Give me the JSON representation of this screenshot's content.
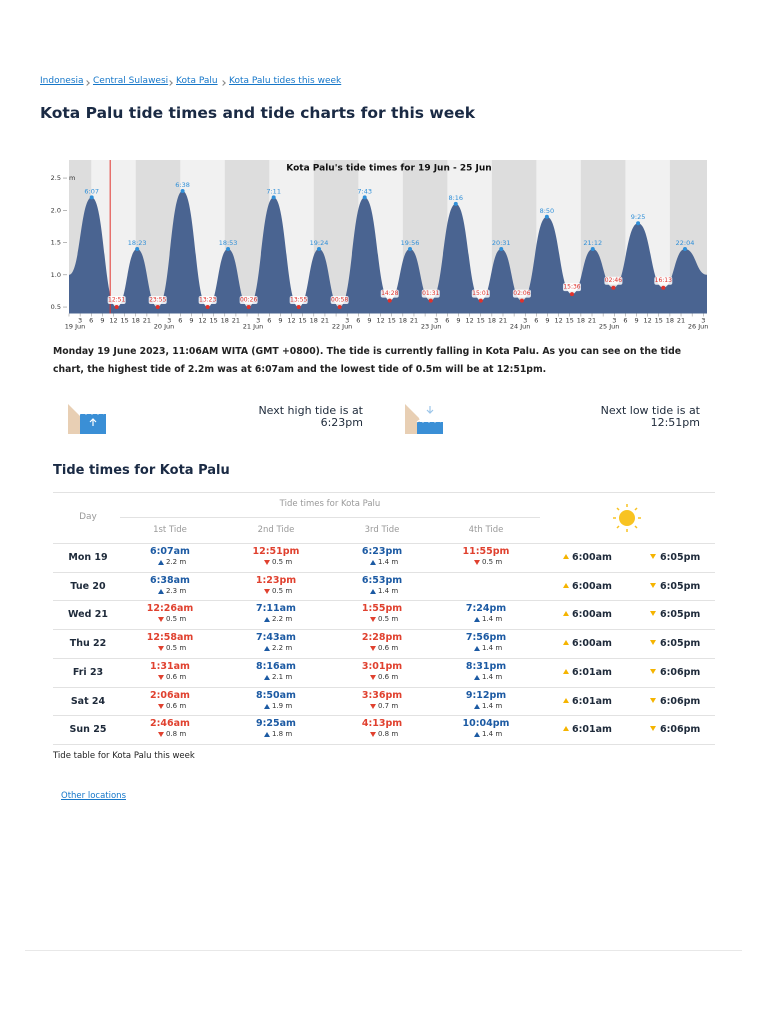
{
  "breadcrumbs": [
    "Indonesia",
    "Central Sulawesi",
    "Kota Palu",
    "Kota Palu tides this week"
  ],
  "page_title": "Kota Palu tide times and tide charts for this week",
  "chart": {
    "chart_data": {
      "type": "area",
      "title": "Kota Palu's tide times for 19 Jun - 25 Jun",
      "color": "#4a6491",
      "x": [
        0,
        6.12,
        12.85,
        18.38,
        23.92,
        30.63,
        37.38,
        42.88,
        48.43,
        55.18,
        61.92,
        67.4,
        72.97,
        79.72,
        86.47,
        91.93,
        97.52,
        104.27,
        111.02,
        116.52,
        122.1,
        128.83,
        135.6,
        141.2,
        146.77,
        153.42,
        160.22,
        166.07,
        172
      ],
      "values": [
        1.0,
        2.2,
        0.5,
        1.4,
        0.5,
        2.3,
        0.5,
        1.4,
        0.5,
        2.2,
        0.5,
        1.4,
        0.5,
        2.2,
        0.6,
        1.4,
        0.6,
        2.1,
        0.6,
        1.4,
        0.6,
        1.9,
        0.7,
        1.4,
        0.8,
        1.8,
        0.8,
        1.4,
        1.0
      ],
      "value_labels": [
        null,
        "6:07",
        "12:51",
        "18:23",
        "23:55",
        "6:38",
        "13:23",
        "18:53",
        "00:26",
        "7:11",
        "13:55",
        "19:24",
        "00:58",
        "7:43",
        "14:28",
        "19:56",
        "01:31",
        "8:16",
        "15:01",
        "20:31",
        "02:06",
        "8:50",
        "15:36",
        "21:12",
        "02:46",
        "9:25",
        "16:13",
        "22:04",
        null
      ],
      "now_x": 11.1,
      "xlim": [
        0,
        172
      ],
      "ylim": [
        0.4,
        2.78
      ],
      "y_unit": "m",
      "yticks": [
        0.5,
        {
          "value": 1.0,
          "label": "1.0"
        },
        1.5,
        {
          "value": 2.0,
          "label": "2.0"
        },
        2.5
      ],
      "xticks": [
        {
          "value": 0,
          "label": "19 Jun"
        },
        3,
        6,
        9,
        12,
        15,
        18,
        21,
        {
          "value": 24,
          "label": "20 Jun"
        },
        {
          "value": 27,
          "label": "3"
        },
        {
          "value": 30,
          "label": "6"
        },
        {
          "value": 33,
          "label": "9"
        },
        {
          "value": 36,
          "label": "12"
        },
        {
          "value": 39,
          "label": "15"
        },
        {
          "value": 42,
          "label": "18"
        },
        {
          "value": 45,
          "label": "21"
        },
        {
          "value": 48,
          "label": "21 Jun"
        },
        {
          "value": 51,
          "label": "3"
        },
        {
          "value": 54,
          "label": "6"
        },
        {
          "value": 57,
          "label": "9"
        },
        {
          "value": 60,
          "label": "12"
        },
        {
          "value": 63,
          "label": "15"
        },
        {
          "value": 66,
          "label": "18"
        },
        {
          "value": 69,
          "label": "21"
        },
        {
          "value": 72,
          "label": "22 Jun"
        },
        {
          "value": 75,
          "label": "3"
        },
        {
          "value": 78,
          "label": "6"
        },
        {
          "value": 81,
          "label": "9"
        },
        {
          "value": 84,
          "label": "12"
        },
        {
          "value": 87,
          "label": "15"
        },
        {
          "value": 90,
          "label": "18"
        },
        {
          "value": 93,
          "label": "21"
        },
        {
          "value": 96,
          "label": "23 Jun"
        },
        {
          "value": 99,
          "label": "3"
        },
        {
          "value": 102,
          "label": "6"
        },
        {
          "value": 105,
          "label": "9"
        },
        {
          "value": 108,
          "label": "12"
        },
        {
          "value": 111,
          "label": "15"
        },
        {
          "value": 114,
          "label": "18"
        },
        {
          "value": 117,
          "label": "21"
        },
        {
          "value": 120,
          "label": "24 Jun"
        },
        {
          "value": 123,
          "label": "3"
        },
        {
          "value": 126,
          "label": "6"
        },
        {
          "value": 129,
          "label": "9"
        },
        {
          "value": 132,
          "label": "12"
        },
        {
          "value": 135,
          "label": "15"
        },
        {
          "value": 138,
          "label": "18"
        },
        {
          "value": 141,
          "label": "21"
        },
        {
          "value": 144,
          "label": "25 Jun"
        },
        {
          "value": 147,
          "label": "3"
        },
        {
          "value": 150,
          "label": "6"
        },
        {
          "value": 153,
          "label": "9"
        },
        {
          "value": 156,
          "label": "12"
        },
        {
          "value": 159,
          "label": "15"
        },
        {
          "value": 162,
          "label": "18"
        },
        {
          "value": 165,
          "label": "21"
        },
        {
          "value": 168,
          "label": "26 Jun"
        },
        {
          "value": 171,
          "label": "3"
        }
      ]
    }
  },
  "description": "Monday 19 June 2023, 11:06AM WITA (GMT +0800). The tide is currently falling in Kota Palu. As you can see on the tide chart, the highest tide of 2.2m was at 6:07am and the lowest tide of 0.5m will be at 12:51pm.",
  "next_high": {
    "label": "Next high tide is at",
    "time": "6:23pm"
  },
  "next_low": {
    "label": "Next low tide is at",
    "time": "12:51pm"
  },
  "table_heading": "Tide times for Kota Palu",
  "table": {
    "day_header": "Day",
    "group_header": "Tide times for Kota Palu",
    "columns": [
      "1st Tide",
      "2nd Tide",
      "3rd Tide",
      "4th Tide"
    ],
    "rows": [
      {
        "day": "Mon 19",
        "tides": [
          {
            "time": "6:07am",
            "height": "2.2 m",
            "kind": "high"
          },
          {
            "time": "12:51pm",
            "height": "0.5 m",
            "kind": "low"
          },
          {
            "time": "6:23pm",
            "height": "1.4 m",
            "kind": "high"
          },
          {
            "time": "11:55pm",
            "height": "0.5 m",
            "kind": "low"
          }
        ],
        "sunrise": "6:00am",
        "sunset": "6:05pm"
      },
      {
        "day": "Tue 20",
        "tides": [
          {
            "time": "6:38am",
            "height": "2.3 m",
            "kind": "high"
          },
          {
            "time": "1:23pm",
            "height": "0.5 m",
            "kind": "low"
          },
          {
            "time": "6:53pm",
            "height": "1.4 m",
            "kind": "high"
          }
        ],
        "sunrise": "6:00am",
        "sunset": "6:05pm"
      },
      {
        "day": "Wed 21",
        "tides": [
          {
            "time": "12:26am",
            "height": "0.5 m",
            "kind": "low"
          },
          {
            "time": "7:11am",
            "height": "2.2 m",
            "kind": "high"
          },
          {
            "time": "1:55pm",
            "height": "0.5 m",
            "kind": "low"
          },
          {
            "time": "7:24pm",
            "height": "1.4 m",
            "kind": "high"
          }
        ],
        "sunrise": "6:00am",
        "sunset": "6:05pm"
      },
      {
        "day": "Thu 22",
        "tides": [
          {
            "time": "12:58am",
            "height": "0.5 m",
            "kind": "low"
          },
          {
            "time": "7:43am",
            "height": "2.2 m",
            "kind": "high"
          },
          {
            "time": "2:28pm",
            "height": "0.6 m",
            "kind": "low"
          },
          {
            "time": "7:56pm",
            "height": "1.4 m",
            "kind": "high"
          }
        ],
        "sunrise": "6:00am",
        "sunset": "6:05pm"
      },
      {
        "day": "Fri 23",
        "tides": [
          {
            "time": "1:31am",
            "height": "0.6 m",
            "kind": "low"
          },
          {
            "time": "8:16am",
            "height": "2.1 m",
            "kind": "high"
          },
          {
            "time": "3:01pm",
            "height": "0.6 m",
            "kind": "low"
          },
          {
            "time": "8:31pm",
            "height": "1.4 m",
            "kind": "high"
          }
        ],
        "sunrise": "6:01am",
        "sunset": "6:06pm"
      },
      {
        "day": "Sat 24",
        "tides": [
          {
            "time": "2:06am",
            "height": "0.6 m",
            "kind": "low"
          },
          {
            "time": "8:50am",
            "height": "1.9 m",
            "kind": "high"
          },
          {
            "time": "3:36pm",
            "height": "0.7 m",
            "kind": "low"
          },
          {
            "time": "9:12pm",
            "height": "1.4 m",
            "kind": "high"
          }
        ],
        "sunrise": "6:01am",
        "sunset": "6:06pm"
      },
      {
        "day": "Sun 25",
        "tides": [
          {
            "time": "2:46am",
            "height": "0.8 m",
            "kind": "low"
          },
          {
            "time": "9:25am",
            "height": "1.8 m",
            "kind": "high"
          },
          {
            "time": "4:13pm",
            "height": "0.8 m",
            "kind": "low"
          },
          {
            "time": "10:04pm",
            "height": "1.4 m",
            "kind": "high"
          }
        ],
        "sunrise": "6:01am",
        "sunset": "6:06pm"
      }
    ]
  },
  "table_caption": "Tide table for Kota Palu this week",
  "other_locations": "Other locations"
}
